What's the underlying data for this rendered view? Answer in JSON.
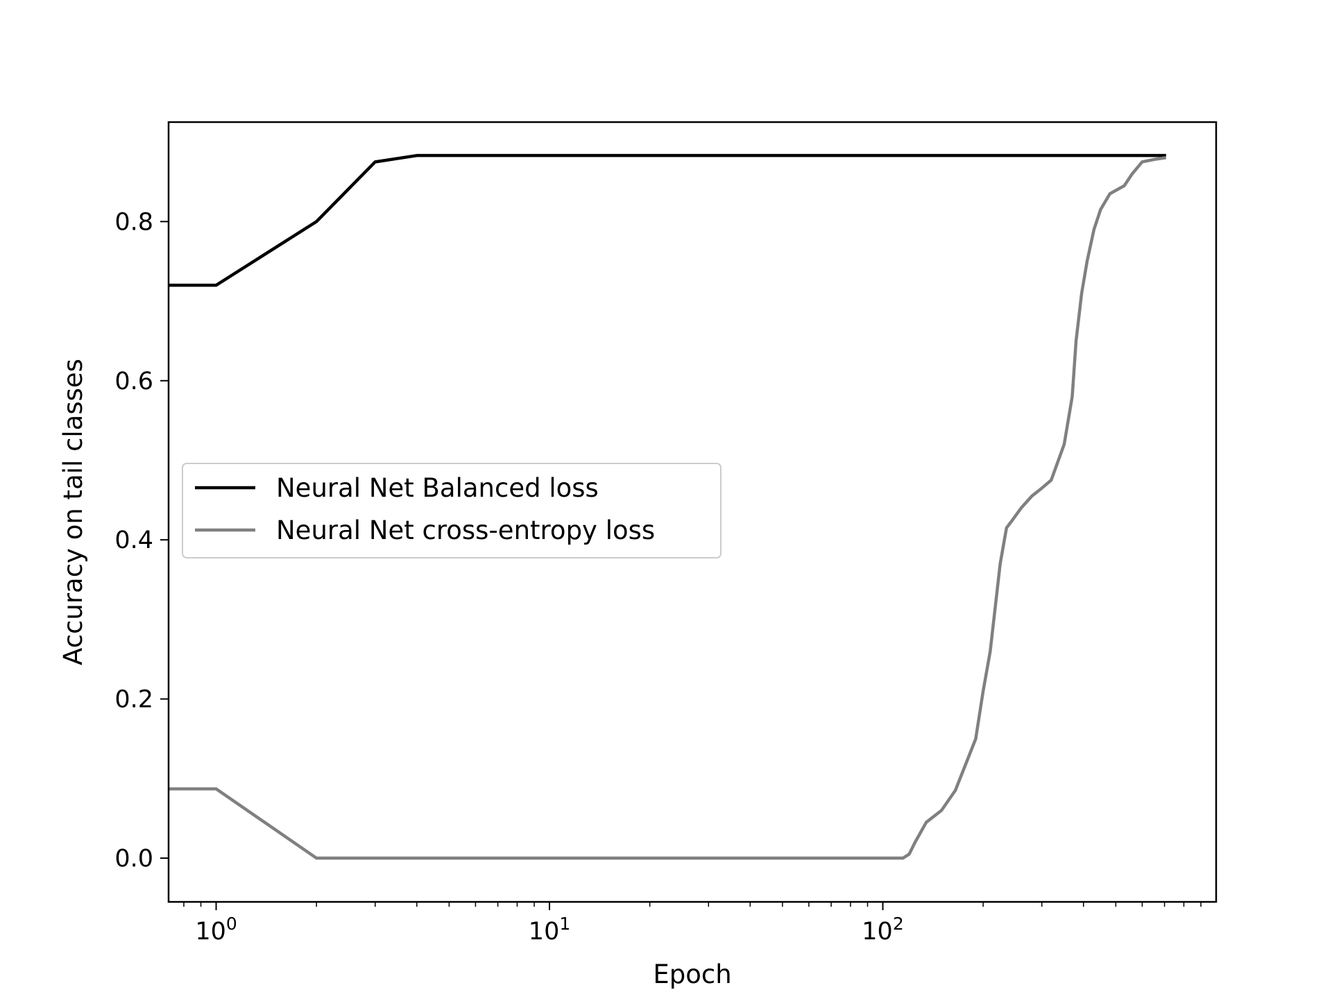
{
  "chart_data": {
    "type": "line",
    "xscale": "log",
    "xlabel": "Epoch",
    "ylabel": "Accuracy on tail classes",
    "xlim": [
      0.72,
      1000
    ],
    "ylim": [
      -0.055,
      0.925
    ],
    "xticks": [
      {
        "value": 1,
        "base": "10",
        "exp": "0"
      },
      {
        "value": 10,
        "base": "10",
        "exp": "1"
      },
      {
        "value": 100,
        "base": "10",
        "exp": "2"
      }
    ],
    "yticks": [
      {
        "value": 0.0,
        "label": "0.0"
      },
      {
        "value": 0.2,
        "label": "0.2"
      },
      {
        "value": 0.4,
        "label": "0.4"
      },
      {
        "value": 0.6,
        "label": "0.6"
      },
      {
        "value": 0.8,
        "label": "0.8"
      }
    ],
    "legend_position": "center-left",
    "grid": false,
    "series": [
      {
        "name": "Neural Net Balanced loss",
        "color": "#000000",
        "x": [
          0.72,
          1,
          2,
          3,
          4,
          10,
          100,
          700
        ],
        "y": [
          0.72,
          0.72,
          0.8,
          0.875,
          0.883,
          0.883,
          0.883,
          0.883
        ]
      },
      {
        "name": "Neural Net cross-entropy loss",
        "color": "#808080",
        "x": [
          0.72,
          1,
          2,
          10,
          50,
          115,
          120,
          125,
          135,
          150,
          165,
          180,
          190,
          200,
          210,
          225,
          235,
          245,
          260,
          280,
          300,
          320,
          350,
          370,
          380,
          395,
          410,
          430,
          450,
          480,
          530,
          560,
          600,
          650,
          700
        ],
        "y": [
          0.087,
          0.087,
          0.0,
          0.0,
          0.0,
          0.0,
          0.005,
          0.02,
          0.045,
          0.06,
          0.085,
          0.125,
          0.15,
          0.21,
          0.26,
          0.37,
          0.415,
          0.425,
          0.44,
          0.455,
          0.465,
          0.475,
          0.52,
          0.58,
          0.65,
          0.71,
          0.75,
          0.79,
          0.815,
          0.835,
          0.845,
          0.86,
          0.875,
          0.878,
          0.88
        ]
      }
    ]
  }
}
